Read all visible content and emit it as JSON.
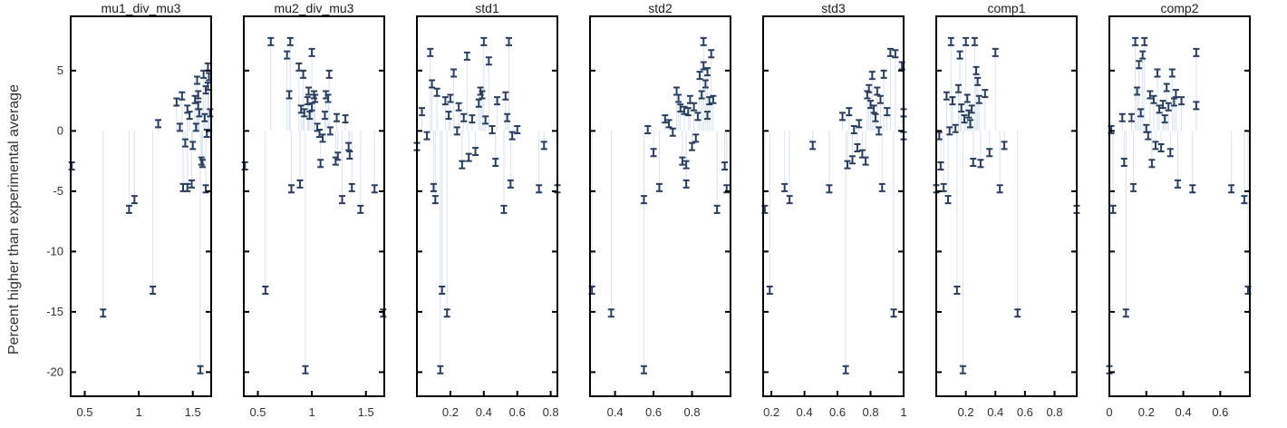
{
  "chart_data": {
    "type": "scatter",
    "ylabel": "Percent higher than experimental average",
    "ylim": [
      -22,
      9.5
    ],
    "yticks": [
      -20,
      -15,
      -10,
      -5,
      0,
      5
    ],
    "colors": {
      "marker": "#2a3f5f",
      "errorline": "#d9e2ee",
      "frame": "#000000"
    },
    "grid": false,
    "panels": [
      {
        "title": "mu1_div_mu3",
        "xlim": [
          0.37,
          1.67
        ],
        "xticks": [
          0.5,
          1,
          1.5
        ],
        "points": [
          [
            0.38,
            -2.9
          ],
          [
            0.67,
            -15.1
          ],
          [
            0.91,
            -6.5
          ],
          [
            0.96,
            -5.7
          ],
          [
            1.13,
            -13.2
          ],
          [
            1.18,
            0.6
          ],
          [
            1.35,
            2.4
          ],
          [
            1.38,
            0.3
          ],
          [
            1.4,
            2.9
          ],
          [
            1.41,
            -4.7
          ],
          [
            1.43,
            -1.0
          ],
          [
            1.45,
            -4.7
          ],
          [
            1.45,
            1.8
          ],
          [
            1.47,
            1.3
          ],
          [
            1.49,
            -4.4
          ],
          [
            1.5,
            -1.2
          ],
          [
            1.52,
            2.6
          ],
          [
            1.53,
            0.3
          ],
          [
            1.54,
            4.2
          ],
          [
            1.55,
            2.1
          ],
          [
            1.55,
            3.0
          ],
          [
            1.56,
            1.5
          ],
          [
            1.57,
            -19.8
          ],
          [
            1.58,
            -2.5
          ],
          [
            1.59,
            -2.7
          ],
          [
            1.6,
            4.7
          ],
          [
            1.61,
            1.1
          ],
          [
            1.62,
            3.4
          ],
          [
            1.62,
            -4.8
          ],
          [
            1.63,
            -0.2
          ],
          [
            1.64,
            3.7
          ],
          [
            1.64,
            5.3
          ],
          [
            1.65,
            4.5
          ],
          [
            1.66,
            1.5
          ]
        ]
      },
      {
        "title": "mu2_div_mu3",
        "xlim": [
          0.37,
          1.67
        ],
        "xticks": [
          0.5,
          1,
          1.5
        ],
        "points": [
          [
            0.38,
            -2.9
          ],
          [
            0.57,
            -13.2
          ],
          [
            0.62,
            7.4
          ],
          [
            0.77,
            6.3
          ],
          [
            0.79,
            3.0
          ],
          [
            0.8,
            7.4
          ],
          [
            0.81,
            -4.8
          ],
          [
            0.88,
            5.3
          ],
          [
            0.89,
            -4.4
          ],
          [
            0.9,
            1.8
          ],
          [
            0.92,
            4.7
          ],
          [
            0.93,
            1.5
          ],
          [
            0.94,
            -19.8
          ],
          [
            0.96,
            2.5
          ],
          [
            0.97,
            3.3
          ],
          [
            0.98,
            1.3
          ],
          [
            1.0,
            6.5
          ],
          [
            1.0,
            2.0
          ],
          [
            1.02,
            3.0
          ],
          [
            1.03,
            2.7
          ],
          [
            1.05,
            0.3
          ],
          [
            1.07,
            -0.2
          ],
          [
            1.08,
            -2.7
          ],
          [
            1.1,
            -0.6
          ],
          [
            1.12,
            1.3
          ],
          [
            1.13,
            3.0
          ],
          [
            1.15,
            2.7
          ],
          [
            1.16,
            4.7
          ],
          [
            1.17,
            0.0
          ],
          [
            1.22,
            -2.5
          ],
          [
            1.23,
            1.1
          ],
          [
            1.24,
            -2.1
          ],
          [
            1.28,
            -5.7
          ],
          [
            1.31,
            1.0
          ],
          [
            1.34,
            -1.3
          ],
          [
            1.35,
            -2.0
          ],
          [
            1.37,
            -4.7
          ],
          [
            1.45,
            -6.5
          ],
          [
            1.58,
            -4.8
          ],
          [
            1.66,
            -15.1
          ]
        ]
      },
      {
        "title": "std1",
        "xlim": [
          0.0,
          0.84
        ],
        "xticks": [
          0.2,
          0.4,
          0.6,
          0.8
        ],
        "points": [
          [
            0.0,
            -1.3
          ],
          [
            0.03,
            1.6
          ],
          [
            0.06,
            -0.4
          ],
          [
            0.08,
            6.5
          ],
          [
            0.09,
            3.9
          ],
          [
            0.1,
            -4.7
          ],
          [
            0.11,
            -5.7
          ],
          [
            0.12,
            3.2
          ],
          [
            0.14,
            -19.8
          ],
          [
            0.15,
            -13.2
          ],
          [
            0.17,
            2.5
          ],
          [
            0.18,
            -15.1
          ],
          [
            0.19,
            1.3
          ],
          [
            0.2,
            2.7
          ],
          [
            0.22,
            4.8
          ],
          [
            0.24,
            0.0
          ],
          [
            0.25,
            2.0
          ],
          [
            0.27,
            -2.8
          ],
          [
            0.28,
            1.1
          ],
          [
            0.3,
            6.2
          ],
          [
            0.31,
            -2.2
          ],
          [
            0.33,
            1.0
          ],
          [
            0.35,
            -1.7
          ],
          [
            0.37,
            2.3
          ],
          [
            0.38,
            3.3
          ],
          [
            0.39,
            3.0
          ],
          [
            0.4,
            7.4
          ],
          [
            0.41,
            0.9
          ],
          [
            0.43,
            5.8
          ],
          [
            0.45,
            0.1
          ],
          [
            0.47,
            -2.6
          ],
          [
            0.48,
            2.5
          ],
          [
            0.52,
            -6.5
          ],
          [
            0.53,
            2.9
          ],
          [
            0.54,
            1.1
          ],
          [
            0.55,
            7.4
          ],
          [
            0.56,
            -4.4
          ],
          [
            0.57,
            -0.4
          ],
          [
            0.6,
            0.1
          ],
          [
            0.73,
            -4.8
          ],
          [
            0.76,
            -1.2
          ],
          [
            0.84,
            -4.8
          ]
        ]
      },
      {
        "title": "std2",
        "xlim": [
          0.27,
          1.0
        ],
        "xticks": [
          0.4,
          0.6,
          0.8
        ],
        "points": [
          [
            0.28,
            -13.2
          ],
          [
            0.38,
            -15.1
          ],
          [
            0.55,
            -5.7
          ],
          [
            0.55,
            -19.8
          ],
          [
            0.57,
            0.1
          ],
          [
            0.6,
            -1.8
          ],
          [
            0.63,
            -4.7
          ],
          [
            0.66,
            1.0
          ],
          [
            0.68,
            0.6
          ],
          [
            0.7,
            -0.1
          ],
          [
            0.72,
            3.3
          ],
          [
            0.73,
            2.7
          ],
          [
            0.74,
            1.9
          ],
          [
            0.75,
            -2.5
          ],
          [
            0.76,
            1.7
          ],
          [
            0.77,
            -4.4
          ],
          [
            0.77,
            -2.8
          ],
          [
            0.78,
            1.6
          ],
          [
            0.79,
            2.6
          ],
          [
            0.8,
            -1.3
          ],
          [
            0.81,
            2.0
          ],
          [
            0.82,
            -0.6
          ],
          [
            0.83,
            1.2
          ],
          [
            0.84,
            4.6
          ],
          [
            0.85,
            3.0
          ],
          [
            0.86,
            5.4
          ],
          [
            0.86,
            7.4
          ],
          [
            0.87,
            3.9
          ],
          [
            0.88,
            1.3
          ],
          [
            0.88,
            4.9
          ],
          [
            0.89,
            2.5
          ],
          [
            0.9,
            6.4
          ],
          [
            0.91,
            2.6
          ],
          [
            0.93,
            -6.5
          ],
          [
            0.97,
            -2.9
          ],
          [
            0.98,
            -4.8
          ]
        ]
      },
      {
        "title": "std3",
        "xlim": [
          0.15,
          1.0
        ],
        "xticks": [
          0.2,
          0.4,
          0.6,
          0.8,
          1
        ],
        "points": [
          [
            0.16,
            -6.5
          ],
          [
            0.19,
            -13.2
          ],
          [
            0.28,
            -4.7
          ],
          [
            0.31,
            -5.7
          ],
          [
            0.45,
            -1.2
          ],
          [
            0.55,
            -4.8
          ],
          [
            0.63,
            1.2
          ],
          [
            0.65,
            -19.8
          ],
          [
            0.66,
            -2.8
          ],
          [
            0.67,
            1.6
          ],
          [
            0.69,
            -2.4
          ],
          [
            0.7,
            0.1
          ],
          [
            0.72,
            -1.4
          ],
          [
            0.73,
            0.6
          ],
          [
            0.75,
            -1.9
          ],
          [
            0.77,
            -2.5
          ],
          [
            0.78,
            3.0
          ],
          [
            0.79,
            3.5
          ],
          [
            0.8,
            2.2
          ],
          [
            0.81,
            4.6
          ],
          [
            0.82,
            1.8
          ],
          [
            0.83,
            1.1
          ],
          [
            0.84,
            3.3
          ],
          [
            0.85,
            0.0
          ],
          [
            0.86,
            2.6
          ],
          [
            0.87,
            -4.7
          ],
          [
            0.88,
            4.7
          ],
          [
            0.9,
            1.6
          ],
          [
            0.92,
            6.5
          ],
          [
            0.94,
            -15.1
          ],
          [
            0.95,
            6.4
          ],
          [
            0.99,
            5.4
          ],
          [
            1.0,
            -0.4
          ],
          [
            1.0,
            1.5
          ]
        ]
      },
      {
        "title": "comp1",
        "xlim": [
          0.0,
          0.95
        ],
        "xticks": [
          0.2,
          0.4,
          0.6,
          0.8
        ],
        "points": [
          [
            0.0,
            -4.8
          ],
          [
            0.02,
            -0.4
          ],
          [
            0.03,
            -2.9
          ],
          [
            0.05,
            -4.7
          ],
          [
            0.07,
            2.9
          ],
          [
            0.08,
            -5.7
          ],
          [
            0.09,
            0.0
          ],
          [
            0.1,
            7.4
          ],
          [
            0.11,
            2.5
          ],
          [
            0.13,
            0.2
          ],
          [
            0.14,
            -13.2
          ],
          [
            0.15,
            3.5
          ],
          [
            0.16,
            6.3
          ],
          [
            0.17,
            1.9
          ],
          [
            0.18,
            -19.8
          ],
          [
            0.19,
            1.0
          ],
          [
            0.2,
            7.4
          ],
          [
            0.21,
            2.7
          ],
          [
            0.22,
            1.4
          ],
          [
            0.23,
            0.6
          ],
          [
            0.24,
            1.8
          ],
          [
            0.25,
            -2.6
          ],
          [
            0.26,
            7.4
          ],
          [
            0.27,
            5.0
          ],
          [
            0.28,
            4.1
          ],
          [
            0.29,
            2.6
          ],
          [
            0.3,
            -2.7
          ],
          [
            0.33,
            3.1
          ],
          [
            0.36,
            -1.8
          ],
          [
            0.4,
            6.5
          ],
          [
            0.43,
            -4.8
          ],
          [
            0.46,
            -1.2
          ],
          [
            0.55,
            -15.1
          ],
          [
            0.95,
            -6.5
          ]
        ]
      },
      {
        "title": "comp2",
        "xlim": [
          0.0,
          0.76
        ],
        "xticks": [
          0,
          0.2,
          0.4,
          0.6
        ],
        "points": [
          [
            0.0,
            -19.8
          ],
          [
            0.01,
            0.1
          ],
          [
            0.02,
            -6.5
          ],
          [
            0.07,
            1.1
          ],
          [
            0.08,
            -2.6
          ],
          [
            0.09,
            -15.1
          ],
          [
            0.12,
            1.1
          ],
          [
            0.13,
            -4.7
          ],
          [
            0.14,
            7.4
          ],
          [
            0.15,
            3.3
          ],
          [
            0.16,
            5.5
          ],
          [
            0.17,
            1.5
          ],
          [
            0.18,
            6.3
          ],
          [
            0.19,
            7.4
          ],
          [
            0.2,
            0.2
          ],
          [
            0.21,
            -0.4
          ],
          [
            0.22,
            3.0
          ],
          [
            0.23,
            -2.7
          ],
          [
            0.24,
            2.6
          ],
          [
            0.25,
            -1.2
          ],
          [
            0.26,
            4.8
          ],
          [
            0.27,
            1.8
          ],
          [
            0.28,
            -1.4
          ],
          [
            0.29,
            2.2
          ],
          [
            0.3,
            1.0
          ],
          [
            0.31,
            3.6
          ],
          [
            0.32,
            2.0
          ],
          [
            0.33,
            -1.8
          ],
          [
            0.34,
            4.8
          ],
          [
            0.35,
            2.4
          ],
          [
            0.36,
            3.1
          ],
          [
            0.37,
            -4.4
          ],
          [
            0.39,
            2.5
          ],
          [
            0.45,
            -4.8
          ],
          [
            0.47,
            6.5
          ],
          [
            0.47,
            2.1
          ],
          [
            0.66,
            -4.8
          ],
          [
            0.73,
            -5.7
          ],
          [
            0.75,
            -13.2
          ]
        ]
      }
    ]
  }
}
